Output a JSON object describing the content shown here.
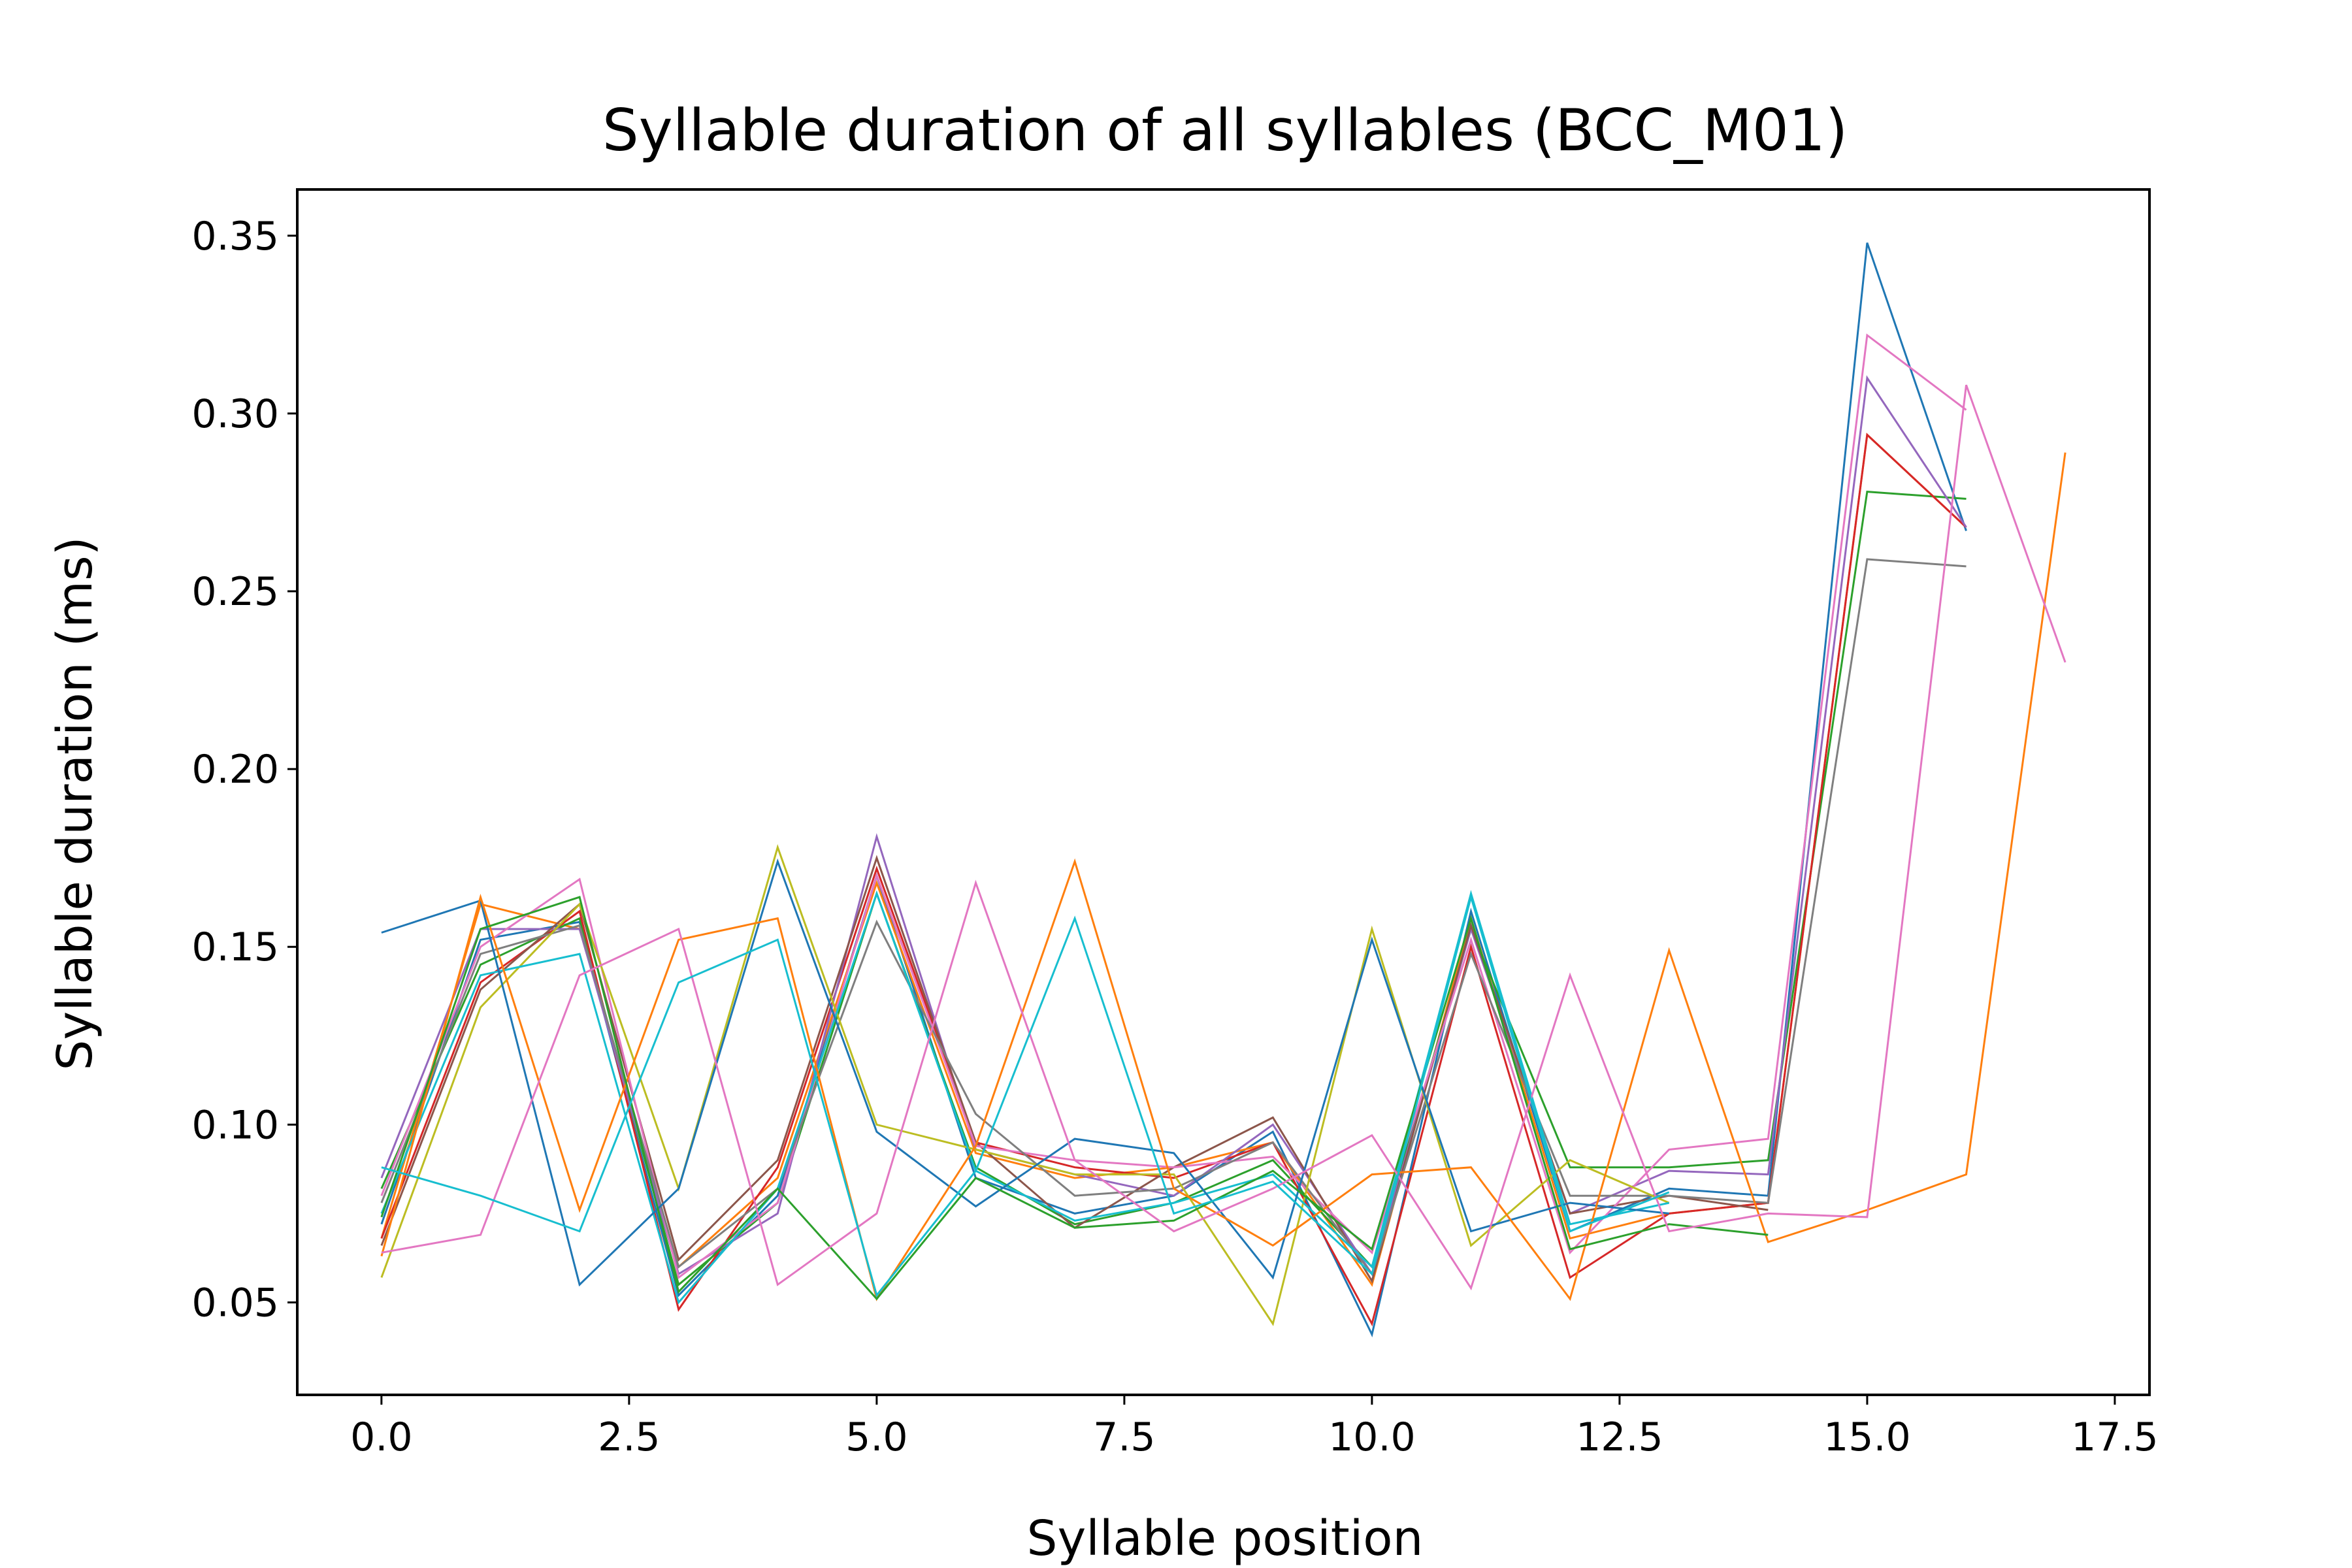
{
  "chart_data": {
    "type": "line",
    "title": "Syllable duration of all syllables (BCC_M01)",
    "xlabel": "Syllable position",
    "ylabel": "Syllable duration (ms)",
    "xlim": [
      -0.85,
      17.85
    ],
    "ylim": [
      0.024,
      0.363
    ],
    "xticks": [
      0.0,
      2.5,
      5.0,
      7.5,
      10.0,
      12.5,
      15.0,
      17.5
    ],
    "xtick_labels": [
      "0.0",
      "2.5",
      "5.0",
      "7.5",
      "10.0",
      "12.5",
      "15.0",
      "17.5"
    ],
    "yticks": [
      0.05,
      0.1,
      0.15,
      0.2,
      0.25,
      0.3,
      0.35
    ],
    "ytick_labels": [
      "0.05",
      "0.10",
      "0.15",
      "0.20",
      "0.25",
      "0.30",
      "0.35"
    ],
    "grid": false,
    "legend": "none",
    "series": [
      {
        "color": "#1f77b4",
        "values": [
          0.072,
          0.152,
          0.157,
          0.052,
          0.08,
          0.17,
          0.085,
          0.075,
          0.08,
          0.098,
          0.041,
          0.16,
          0.07,
          0.082,
          0.08,
          0.348,
          0.267
        ]
      },
      {
        "color": "#ff7f0e",
        "values": [
          0.068,
          0.162,
          0.155,
          0.06,
          0.085,
          0.168,
          0.092,
          0.085,
          0.088,
          0.095,
          0.055,
          0.158,
          0.068,
          0.075,
          0.078,
          0.294,
          0.268
        ]
      },
      {
        "color": "#2ca02c",
        "values": [
          0.082,
          0.145,
          0.158,
          0.055,
          0.078,
          0.165,
          0.088,
          0.072,
          0.078,
          0.09,
          0.06,
          0.155,
          0.088,
          0.088,
          0.09,
          0.278,
          0.276
        ]
      },
      {
        "color": "#d62728",
        "values": [
          0.068,
          0.14,
          0.16,
          0.048,
          0.088,
          0.172,
          0.095,
          0.088,
          0.085,
          0.095,
          0.044,
          0.15,
          0.057,
          0.075,
          0.078,
          0.294,
          0.268
        ]
      },
      {
        "color": "#9467bd",
        "values": [
          0.085,
          0.155,
          0.155,
          0.058,
          0.075,
          0.181,
          0.093,
          0.086,
          0.08,
          0.1,
          0.058,
          0.155,
          0.075,
          0.087,
          0.086,
          0.31,
          0.268
        ]
      },
      {
        "color": "#8c564b",
        "values": [
          0.066,
          0.138,
          0.162,
          0.062,
          0.09,
          0.175,
          0.095,
          0.071,
          0.088,
          0.102,
          0.056,
          0.156,
          0.075,
          0.08,
          0.076
        ]
      },
      {
        "color": "#e377c2",
        "values": [
          0.08,
          0.15,
          0.169,
          0.057,
          0.078,
          0.17,
          0.094,
          0.09,
          0.088,
          0.091,
          0.064,
          0.152,
          0.064,
          0.093,
          0.096,
          0.322,
          0.301
        ]
      },
      {
        "color": "#7f7f7f",
        "values": [
          0.078,
          0.148,
          0.156,
          0.06,
          0.082,
          0.157,
          0.103,
          0.08,
          0.082,
          0.095,
          0.058,
          0.148,
          0.08,
          0.08,
          0.078,
          0.259,
          0.257
        ]
      },
      {
        "color": "#bcbd22",
        "values": [
          0.057,
          0.133,
          0.162,
          0.082,
          0.178,
          0.1,
          0.093,
          0.086,
          0.086,
          0.044,
          0.155,
          0.066,
          0.09,
          0.078
        ]
      },
      {
        "color": "#17becf",
        "values": [
          0.075,
          0.142,
          0.148,
          0.05,
          0.082,
          0.165,
          0.087,
          0.073,
          0.078,
          0.086,
          0.06,
          0.165,
          0.072,
          0.078
        ]
      },
      {
        "color": "#1f77b4",
        "values": [
          0.154,
          0.163,
          0.055,
          0.082,
          0.174,
          0.098,
          0.077,
          0.096,
          0.092,
          0.057,
          0.152,
          0.07,
          0.078,
          0.075
        ]
      },
      {
        "color": "#ff7f0e",
        "values": [
          0.063,
          0.164,
          0.076,
          0.152,
          0.158,
          0.051,
          0.094,
          0.174,
          0.082,
          0.066,
          0.086,
          0.088,
          0.051,
          0.149,
          0.067,
          0.076,
          0.086,
          0.289
        ]
      },
      {
        "color": "#2ca02c",
        "values": [
          0.074,
          0.155,
          0.164,
          0.053,
          0.082,
          0.051,
          0.085,
          0.071,
          0.073,
          0.087,
          0.065,
          0.158,
          0.065,
          0.072,
          0.069
        ]
      },
      {
        "color": "#e377c2",
        "values": [
          0.064,
          0.069,
          0.142,
          0.155,
          0.055,
          0.075,
          0.168,
          0.09,
          0.07,
          0.082,
          0.097,
          0.054,
          0.142,
          0.07,
          0.075,
          0.074,
          0.308,
          0.23
        ]
      },
      {
        "color": "#17becf",
        "values": [
          0.088,
          0.08,
          0.07,
          0.14,
          0.152,
          0.052,
          0.087,
          0.158,
          0.075,
          0.084,
          0.058,
          0.164,
          0.07,
          0.081
        ]
      }
    ]
  }
}
